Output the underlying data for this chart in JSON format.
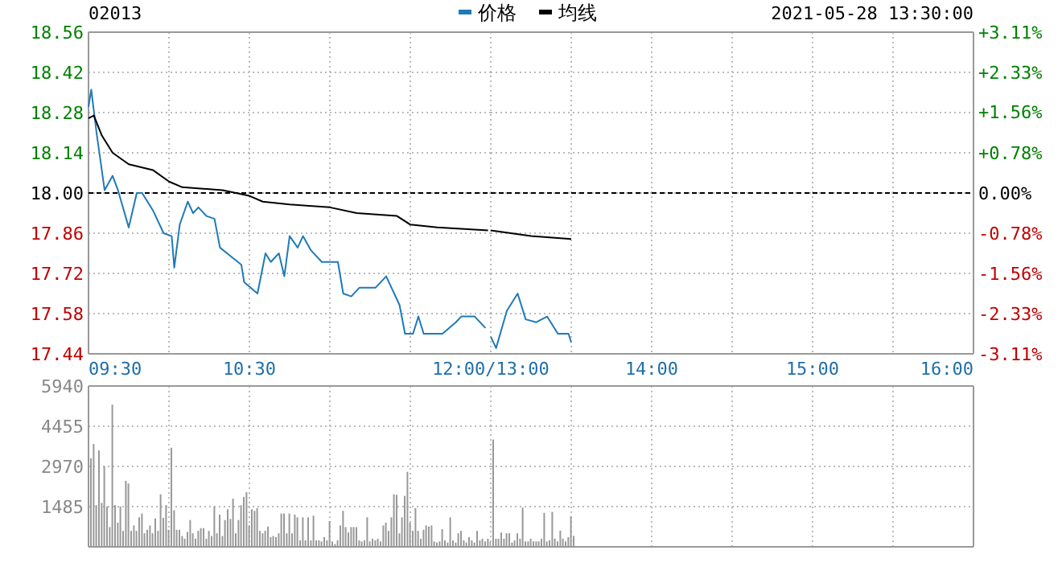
{
  "chart_data": [
    {
      "type": "line",
      "subtitle": "02013",
      "annotations": [
        "2021-05-28 13:30:00"
      ],
      "xlim": [
        9.5,
        12
      ],
      "xticks": [
        {
          "value": 9.5,
          "label": "09:30"
        },
        {
          "value": 10,
          "label": null
        },
        {
          "value": 10.5,
          "label": "10:30"
        },
        {
          "value": 11,
          "label": null
        },
        {
          "value": 11.5,
          "label": null
        },
        {
          "value": 12,
          "label": "12:00/13:00"
        }
      ],
      "ylim": [
        17.44,
        18.56
      ],
      "yticks": [
        {
          "value": 17.44,
          "label": "17.44"
        },
        {
          "value": 17.58,
          "label": "17.58"
        },
        {
          "value": 17.72,
          "label": "17.72"
        },
        {
          "value": 17.86,
          "label": "17.86"
        },
        {
          "value": 18,
          "label": "18.00"
        },
        {
          "value": 18.14,
          "label": "18.14"
        },
        {
          "value": 18.28,
          "label": "18.28"
        },
        {
          "value": 18.42,
          "label": "18.42"
        },
        {
          "value": 18.56,
          "label": "18.56"
        }
      ],
      "grid": true,
      "legend": "top",
      "ref_lines": [
        {
          "axis": "y",
          "value": 18,
          "line_style": "dashed",
          "color": "#000000"
        }
      ],
      "series": [
        {
          "name": "价格",
          "color": "#1f7ab8",
          "x": [
            9.5,
            9.517,
            9.55,
            9.6,
            9.65,
            9.683,
            9.75,
            9.8,
            9.833,
            9.9,
            9.967,
            10.017,
            10.033,
            10.067,
            10.117,
            10.15,
            10.183,
            10.233,
            10.283,
            10.317,
            10.383,
            10.45,
            10.467,
            10.55,
            10.6,
            10.633,
            10.683,
            10.717,
            10.75,
            10.8,
            10.833,
            10.883,
            10.95,
            11.05,
            11.083,
            11.133,
            11.183,
            11.283,
            11.35,
            11.433,
            11.467,
            11.517,
            11.55,
            11.583,
            11.7,
            11.783,
            11.817,
            11.9,
            11.967
          ],
          "values": [
            18.3,
            18.36,
            18.21,
            18.01,
            18.06,
            18.01,
            17.88,
            18.0,
            18.0,
            17.94,
            17.86,
            17.85,
            17.74,
            17.89,
            17.97,
            17.93,
            17.95,
            17.92,
            17.91,
            17.81,
            17.78,
            17.75,
            17.69,
            17.65,
            17.79,
            17.76,
            17.79,
            17.71,
            17.85,
            17.81,
            17.85,
            17.8,
            17.76,
            17.76,
            17.65,
            17.64,
            17.67,
            17.67,
            17.71,
            17.61,
            17.51,
            17.51,
            17.57,
            17.51,
            17.51,
            17.55,
            17.57,
            17.57,
            17.53
          ]
        },
        {
          "name": "均线",
          "color": "#000000",
          "x": [
            9.5,
            9.533,
            9.583,
            9.65,
            9.75,
            9.9,
            10,
            10.083,
            10.333,
            10.5,
            10.583,
            10.75,
            11,
            11.167,
            11.417,
            11.5,
            11.667,
            11.983
          ],
          "values": [
            18.26,
            18.27,
            18.2,
            18.14,
            18.1,
            18.08,
            18.04,
            18.02,
            18.01,
            17.99,
            17.97,
            17.96,
            17.95,
            17.93,
            17.92,
            17.89,
            17.88,
            17.87
          ]
        }
      ]
    },
    {
      "type": "line",
      "tick_labels": "x",
      "xlim": [
        13,
        16
      ],
      "xticks": [
        {
          "value": 13,
          "label": null
        },
        {
          "value": 13.5,
          "label": null
        },
        {
          "value": 14,
          "label": "14:00"
        },
        {
          "value": 14.5,
          "label": null
        },
        {
          "value": 15,
          "label": "15:00"
        },
        {
          "value": 15.5,
          "label": null
        },
        {
          "value": 16,
          "label": "16:00"
        }
      ],
      "ylim": [
        17.44,
        18.56
      ],
      "yticks": [
        17.44,
        17.58,
        17.72,
        17.86,
        18,
        18.14,
        18.28,
        18.42,
        18.56
      ],
      "y2lim": [
        -3.11,
        3.11
      ],
      "y2ticks": [
        {
          "value": -3.11,
          "label": "-3.11%"
        },
        {
          "value": -2.33,
          "label": "-2.33%"
        },
        {
          "value": -1.56,
          "label": "-1.56%"
        },
        {
          "value": -0.78,
          "label": "-0.78%"
        },
        {
          "value": 0,
          "label": "0.00%"
        },
        {
          "value": 0.78,
          "label": "+0.78%"
        },
        {
          "value": 1.56,
          "label": "+1.56%"
        },
        {
          "value": 2.33,
          "label": "+2.33%"
        },
        {
          "value": 3.11,
          "label": "+3.11%"
        }
      ],
      "grid": true,
      "ref_lines": [
        {
          "axis": "y",
          "value": 18,
          "line_style": "dashed",
          "color": "#000000"
        }
      ],
      "series": [
        {
          "color": "#1f7ab8",
          "x": [
            13.0,
            13.033,
            13.1,
            13.167,
            13.217,
            13.283,
            13.35,
            13.417,
            13.483,
            13.5
          ],
          "values": [
            17.5,
            17.46,
            17.59,
            17.65,
            17.56,
            17.55,
            17.57,
            17.51,
            17.51,
            17.48
          ]
        },
        {
          "color": "#000000",
          "x": [
            13.0,
            13.25,
            13.5
          ],
          "values": [
            17.87,
            17.85,
            17.84
          ]
        }
      ]
    },
    {
      "type": "bar",
      "tick_labels": "y",
      "xlim": [
        9.5,
        12
      ],
      "xticks": [
        9.5,
        10,
        10.5,
        11,
        11.5,
        12
      ],
      "ylim": [
        0,
        5940
      ],
      "yticks": [
        {
          "value": 0,
          "label": null
        },
        1485,
        2970,
        4455,
        5940
      ],
      "grid": true,
      "series": [
        {
          "color": "#999999",
          "x": [
            9.5,
            9.517,
            9.533,
            9.55,
            9.567,
            9.583,
            9.6,
            9.617,
            9.633,
            9.65,
            9.667,
            9.683,
            9.7,
            9.717,
            9.733,
            9.75,
            9.767,
            9.783,
            9.8,
            9.817,
            9.833,
            9.85,
            9.867,
            9.883,
            9.9,
            9.917,
            9.933,
            9.95,
            9.967,
            9.983,
            10.0,
            10.017,
            10.033,
            10.05,
            10.067,
            10.083,
            10.1,
            10.117,
            10.133,
            10.15,
            10.167,
            10.183,
            10.2,
            10.217,
            10.233,
            10.25,
            10.267,
            10.283,
            10.3,
            10.317,
            10.333,
            10.35,
            10.367,
            10.383,
            10.4,
            10.417,
            10.433,
            10.45,
            10.467,
            10.483,
            10.5,
            10.517,
            10.533,
            10.55,
            10.567,
            10.583,
            10.6,
            10.617,
            10.633,
            10.65,
            10.667,
            10.683,
            10.7,
            10.717,
            10.733,
            10.75,
            10.767,
            10.783,
            10.8,
            10.817,
            10.833,
            10.85,
            10.867,
            10.883,
            10.9,
            10.917,
            10.933,
            10.95,
            10.967,
            10.983,
            11.0,
            11.017,
            11.033,
            11.05,
            11.067,
            11.083,
            11.1,
            11.117,
            11.133,
            11.15,
            11.167,
            11.183,
            11.2,
            11.217,
            11.233,
            11.25,
            11.267,
            11.283,
            11.3,
            11.317,
            11.333,
            11.35,
            11.367,
            11.383,
            11.4,
            11.417,
            11.433,
            11.45,
            11.467,
            11.483,
            11.5,
            11.517,
            11.533,
            11.55,
            11.567,
            11.583,
            11.6,
            11.617,
            11.633,
            11.65,
            11.667,
            11.683,
            11.7,
            11.717,
            11.733,
            11.75,
            11.767,
            11.783,
            11.8,
            11.817,
            11.833,
            11.85,
            11.867,
            11.883,
            11.9,
            11.917,
            11.933,
            11.95,
            11.967,
            11.983
          ],
          "values": [
            3270,
            3800,
            1540,
            3560,
            1620,
            2970,
            1490,
            730,
            5250,
            1540,
            890,
            1490,
            590,
            2440,
            2340,
            590,
            790,
            590,
            1090,
            1230,
            500,
            630,
            790,
            500,
            1050,
            590,
            1940,
            1070,
            1540,
            630,
            3660,
            1350,
            630,
            630,
            400,
            300,
            550,
            990,
            500,
            300,
            590,
            690,
            690,
            300,
            590,
            400,
            1490,
            500,
            1190,
            400,
            990,
            1390,
            1030,
            1780,
            500,
            990,
            1540,
            1840,
            2020,
            790,
            1390,
            1330,
            1430,
            590,
            500,
            590,
            750,
            360,
            400,
            360,
            500,
            1230,
            1230,
            500,
            1230,
            500,
            1190,
            1090,
            240,
            1090,
            240,
            1090,
            240,
            1150,
            240,
            240,
            200,
            360,
            240,
            950,
            200,
            100,
            240,
            790,
            1330,
            730,
            530,
            730,
            730,
            730,
            240,
            200,
            240,
            1090,
            200,
            300,
            240,
            300,
            200,
            790,
            890,
            590,
            1090,
            1940,
            1920,
            500,
            1090,
            1880,
            2770,
            890,
            590,
            1430,
            590,
            300,
            630,
            790,
            750,
            790,
            200,
            160,
            200,
            650,
            240,
            160,
            1090,
            240,
            160,
            500,
            590,
            240,
            160,
            360,
            240,
            160,
            590,
            240,
            300,
            200,
            300,
            200
          ]
        }
      ]
    },
    {
      "type": "bar",
      "tick_labels": false,
      "xlim": [
        13,
        16
      ],
      "xticks": [
        13,
        13.5,
        14,
        14.5,
        15,
        15.5,
        16
      ],
      "ylim": [
        0,
        5940
      ],
      "yticks": [
        0,
        1485,
        2970,
        4455,
        5940
      ],
      "grid": true,
      "series": [
        {
          "color": "#999999",
          "x": [
            13.0,
            13.017,
            13.033,
            13.05,
            13.067,
            13.083,
            13.1,
            13.117,
            13.133,
            13.15,
            13.167,
            13.183,
            13.2,
            13.217,
            13.233,
            13.25,
            13.267,
            13.283,
            13.3,
            13.317,
            13.333,
            13.35,
            13.367,
            13.383,
            13.4,
            13.417,
            13.433,
            13.45,
            13.467,
            13.483,
            13.5
          ],
          "values": [
            3960,
            300,
            300,
            530,
            300,
            500,
            500,
            160,
            240,
            500,
            300,
            1450,
            200,
            200,
            300,
            200,
            200,
            200,
            300,
            1250,
            200,
            240,
            1290,
            300,
            200,
            600,
            300,
            200,
            360,
            1130,
            400
          ]
        }
      ]
    }
  ]
}
